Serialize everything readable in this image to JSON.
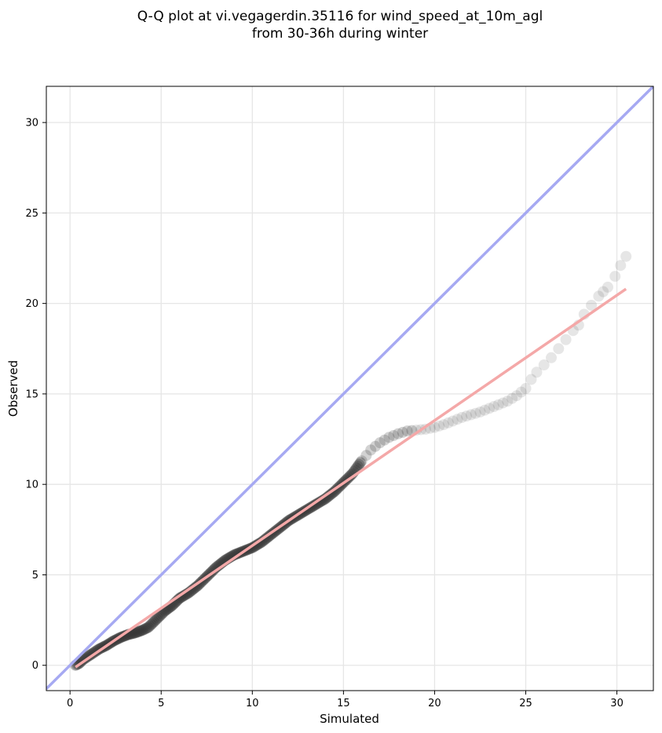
{
  "chart_data": {
    "type": "scatter",
    "title": "Q-Q plot at vi.vegagerdin.35116 for wind_speed_at_10m_agl",
    "subtitle": "from 30-36h during winter",
    "xlabel": "Simulated",
    "ylabel": "Observed",
    "xlim": [
      -1.3,
      32.0
    ],
    "ylim": [
      -1.4,
      32.0
    ],
    "xticks": [
      0,
      5,
      10,
      15,
      20,
      25,
      30
    ],
    "yticks": [
      0,
      5,
      10,
      15,
      20,
      25,
      30
    ],
    "grid": true,
    "colors": {
      "points": "#333333",
      "identity_line": "#a6a9f2",
      "fit_line": "#f4a8a8"
    },
    "identity_line": {
      "x": [
        -1.3,
        32.0
      ],
      "y": [
        -1.3,
        32.0
      ]
    },
    "fit_line": {
      "x": [
        0.3,
        30.5
      ],
      "y": [
        -0.1,
        20.8
      ]
    },
    "quantiles": {
      "x": [
        0.3,
        0.5,
        0.7,
        1.0,
        1.3,
        1.6,
        2.0,
        2.4,
        2.8,
        3.2,
        3.6,
        4.0,
        4.3,
        4.6,
        4.9,
        5.2,
        5.6,
        6.0,
        6.5,
        7.0,
        7.5,
        8.0,
        8.5,
        9.0,
        9.5,
        10.0,
        10.5,
        11.0,
        11.5,
        12.0,
        12.5,
        13.0,
        13.5,
        14.0,
        14.5,
        15.0,
        15.5,
        16.0,
        16.5,
        17.0,
        17.5,
        18.0,
        18.5,
        19.0,
        19.5,
        20.0,
        20.5,
        21.0,
        21.5,
        22.0,
        22.5,
        23.0,
        23.5,
        24.0,
        24.5,
        25.0,
        25.3,
        25.6,
        26.0,
        26.4,
        26.8,
        27.2,
        27.6,
        27.9,
        28.2,
        28.6,
        29.0,
        29.5,
        29.9,
        30.2,
        30.5
      ],
      "y": [
        0.0,
        0.1,
        0.3,
        0.5,
        0.7,
        0.9,
        1.1,
        1.35,
        1.55,
        1.7,
        1.8,
        1.95,
        2.1,
        2.4,
        2.7,
        3.0,
        3.3,
        3.7,
        4.0,
        4.4,
        4.9,
        5.4,
        5.8,
        6.1,
        6.3,
        6.5,
        6.8,
        7.2,
        7.6,
        8.0,
        8.3,
        8.6,
        8.9,
        9.2,
        9.6,
        10.1,
        10.6,
        11.3,
        11.9,
        12.3,
        12.6,
        12.8,
        12.95,
        13.0,
        13.05,
        13.15,
        13.3,
        13.5,
        13.7,
        13.85,
        14.0,
        14.2,
        14.4,
        14.6,
        14.9,
        15.3,
        15.8,
        16.2,
        16.6,
        17.0,
        17.5,
        18.0,
        18.5,
        18.8,
        19.4,
        19.9,
        20.4,
        20.9,
        21.5,
        22.1,
        22.6
      ]
    }
  }
}
